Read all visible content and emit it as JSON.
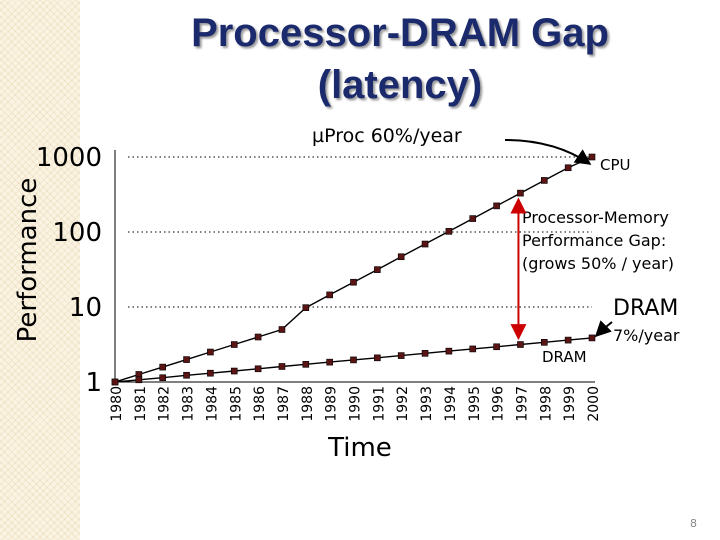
{
  "slide": {
    "title_line1": "Processor-DRAM Gap",
    "title_line2": "(latency)",
    "page_number": "8"
  },
  "annotations": {
    "uproc_rate": "µProc 60%/year",
    "cpu_label": "CPU",
    "gap_text_line1": "Processor-Memory",
    "gap_text_line2": "Performance Gap:",
    "gap_text_line3": "(grows 50% / year)",
    "dram_rate_label": "DRAM",
    "dram_rate_value": "7%/year",
    "dram_series_label": "DRAM"
  },
  "colors": {
    "title": "#1a2a6c",
    "gap_arrow": "#cc0000",
    "marker": "#5a1414"
  },
  "chart_data": {
    "type": "line",
    "title": "",
    "xlabel": "Time",
    "ylabel": "Performance",
    "yscale": "log",
    "ylim": [
      1,
      1000
    ],
    "ytick_labels": [
      "1",
      "10",
      "100",
      "1000"
    ],
    "ytick_values": [
      1,
      10,
      100,
      1000
    ],
    "categories": [
      "1980",
      "1981",
      "1982",
      "1983",
      "1984",
      "1985",
      "1986",
      "1987",
      "1988",
      "1989",
      "1990",
      "1991",
      "1992",
      "1993",
      "1994",
      "1995",
      "1996",
      "1997",
      "1998",
      "1999",
      "2000"
    ],
    "series": [
      {
        "name": "CPU",
        "values": [
          1,
          1.26,
          1.58,
          1.99,
          2.51,
          3.16,
          3.98,
          5.01,
          9.8,
          14.5,
          21.4,
          31.5,
          46.8,
          69.1,
          102,
          151,
          223,
          330,
          487,
          719,
          1000
        ]
      },
      {
        "name": "DRAM",
        "values": [
          1,
          1.07,
          1.14,
          1.23,
          1.31,
          1.4,
          1.5,
          1.61,
          1.72,
          1.84,
          1.97,
          2.1,
          2.25,
          2.41,
          2.58,
          2.76,
          2.95,
          3.16,
          3.38,
          3.62,
          3.87
        ]
      }
    ],
    "grid": "dotted reference lines at 10, 100, 1000",
    "legend": "none (direct labels)"
  }
}
